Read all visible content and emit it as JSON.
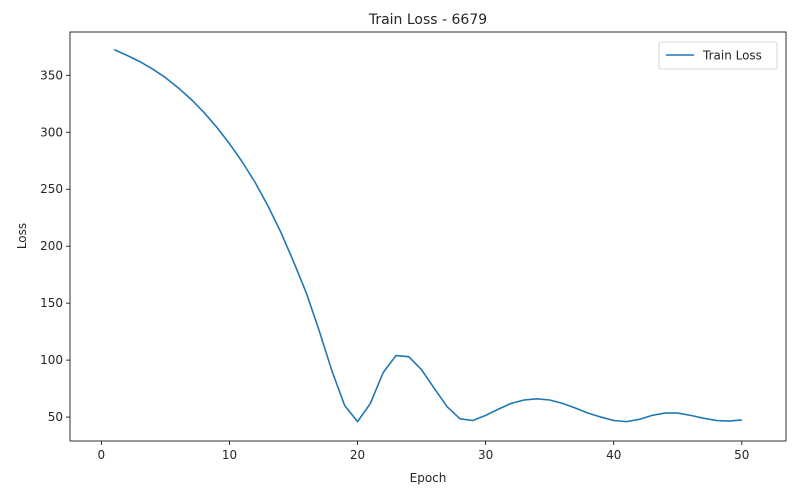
{
  "chart_data": {
    "type": "line",
    "title": "Train Loss - 6679",
    "xlabel": "Epoch",
    "ylabel": "Loss",
    "xlim": [
      -2.45,
      53.45
    ],
    "ylim": [
      29,
      388
    ],
    "xticks": [
      0,
      10,
      20,
      30,
      40,
      50
    ],
    "yticks": [
      50,
      100,
      150,
      200,
      250,
      300,
      350
    ],
    "grid": false,
    "legend_position": "top-right",
    "series": [
      {
        "name": "Train Loss",
        "color": "#1f77b4",
        "x": [
          1,
          2,
          3,
          4,
          5,
          6,
          7,
          8,
          9,
          10,
          11,
          12,
          13,
          14,
          15,
          16,
          17,
          18,
          19,
          20,
          21,
          22,
          23,
          24,
          25,
          26,
          27,
          28,
          29,
          30,
          31,
          32,
          33,
          34,
          35,
          36,
          37,
          38,
          39,
          40,
          41,
          42,
          43,
          44,
          45,
          46,
          47,
          48,
          49,
          50
        ],
        "y": [
          372.5,
          367.5,
          362.0,
          355.5,
          348.0,
          339.0,
          329.0,
          317.5,
          304.5,
          290.0,
          274.0,
          256.0,
          235.5,
          212.5,
          186.5,
          159.0,
          126.0,
          90.5,
          60.0,
          46.0,
          62.0,
          89.0,
          104.0,
          103.0,
          91.5,
          75.0,
          59.0,
          48.5,
          47.0,
          51.5,
          57.0,
          62.0,
          65.0,
          66.0,
          65.0,
          62.0,
          58.0,
          53.5,
          50.0,
          47.0,
          46.0,
          48.0,
          51.5,
          53.5,
          53.5,
          51.5,
          49.0,
          47.0,
          46.5,
          47.5
        ]
      }
    ]
  }
}
